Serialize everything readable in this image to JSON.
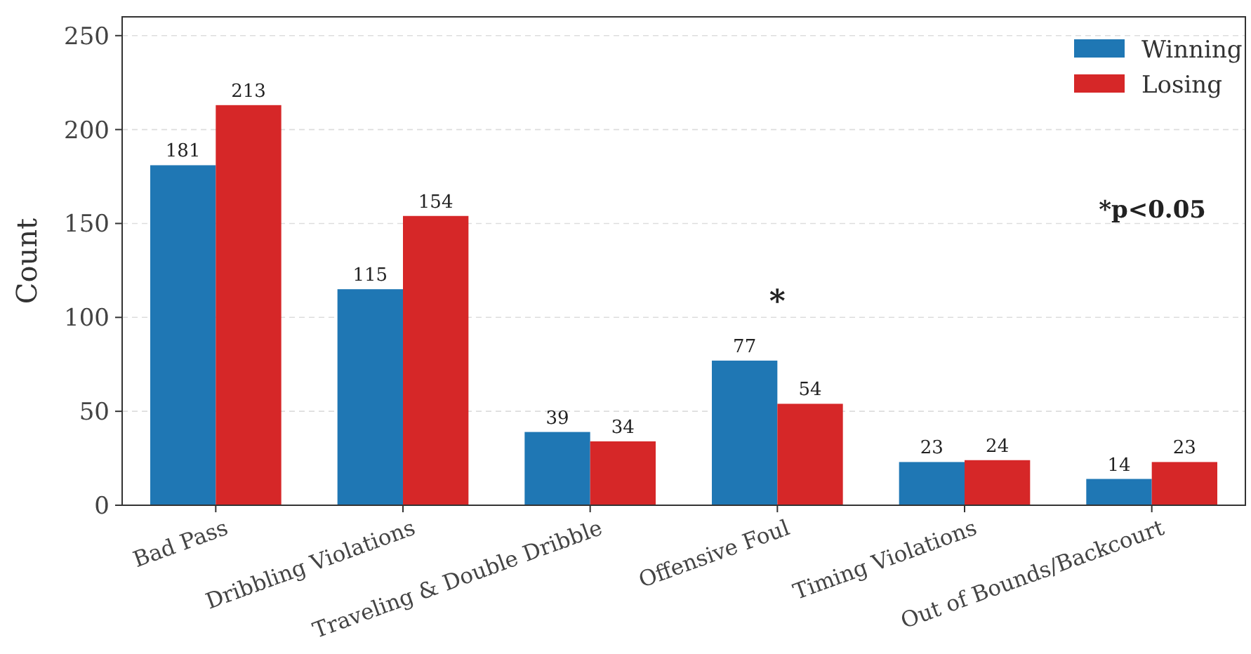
{
  "chart_data": {
    "type": "bar",
    "ylabel": "Count",
    "categories": [
      "Bad Pass",
      "Dribbling Violations",
      "Traveling & Double Dribble",
      "Offensive Foul",
      "Timing Violations",
      "Out of Bounds/Backcourt"
    ],
    "series": [
      {
        "name": "Winning",
        "color": "#1f77b4",
        "values": [
          181,
          115,
          39,
          77,
          23,
          14
        ]
      },
      {
        "name": "Losing",
        "color": "#d62728",
        "values": [
          213,
          154,
          34,
          54,
          24,
          23
        ]
      }
    ],
    "ylim": [
      0,
      260
    ],
    "yticks": [
      0,
      50,
      100,
      150,
      200,
      250
    ],
    "grid": "y",
    "legend": "top right",
    "data_labels": true,
    "annotations": [
      "*",
      "*p<0.05"
    ]
  }
}
